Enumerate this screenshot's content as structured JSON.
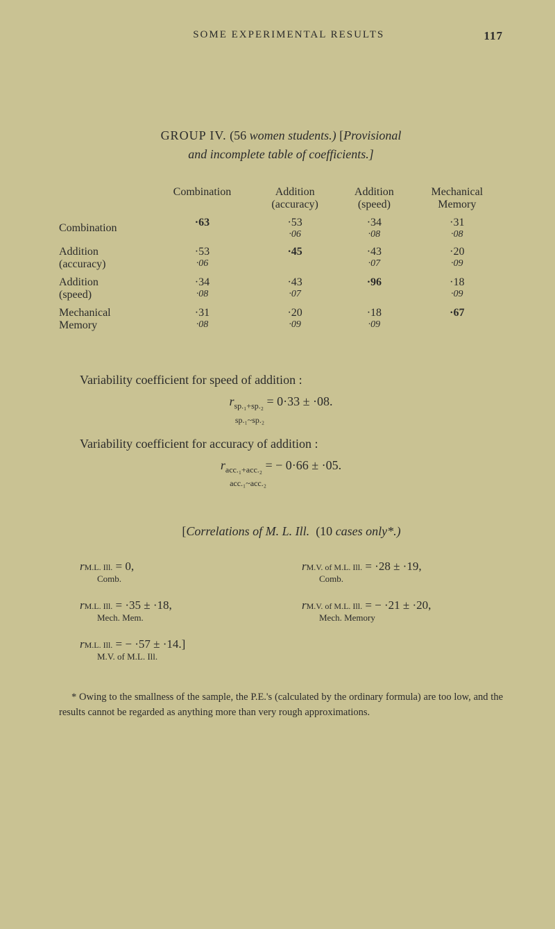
{
  "header": {
    "running_title": "SOME EXPERIMENTAL RESULTS",
    "page_number": "117"
  },
  "title": {
    "group": "GROUP IV.",
    "paren": "(56",
    "women_students": "women students.)",
    "bracket_open": "[",
    "provisional": "Provisional",
    "line2_and": "and incomplete table of coefficients.]"
  },
  "table": {
    "headers": [
      "",
      "Combination",
      "Addition (accuracy)",
      "Addition (speed)",
      "Mechanical Memory"
    ],
    "rows": [
      {
        "label": "Combination",
        "sublabel": "",
        "cells": [
          {
            "main": "·63",
            "sub": "",
            "bold": true
          },
          {
            "main": "·53",
            "sub": "·06"
          },
          {
            "main": "·34",
            "sub": "·08"
          },
          {
            "main": "·31",
            "sub": "·08"
          }
        ]
      },
      {
        "label": "Addition",
        "sublabel": "(accuracy)",
        "cells": [
          {
            "main": "·53",
            "sub": "·06"
          },
          {
            "main": "·45",
            "sub": "",
            "bold": true
          },
          {
            "main": "·43",
            "sub": "·07"
          },
          {
            "main": "·20",
            "sub": "·09"
          }
        ]
      },
      {
        "label": "Addition",
        "sublabel": "(speed)",
        "cells": [
          {
            "main": "·34",
            "sub": "·08"
          },
          {
            "main": "·43",
            "sub": "·07"
          },
          {
            "main": "·96",
            "sub": "",
            "bold": true
          },
          {
            "main": "·18",
            "sub": "·09"
          }
        ]
      },
      {
        "label": "Mechanical",
        "sublabel": "Memory",
        "cells": [
          {
            "main": "·31",
            "sub": "·08"
          },
          {
            "main": "·20",
            "sub": "·09"
          },
          {
            "main": "·18",
            "sub": "·09"
          },
          {
            "main": "·67",
            "sub": "",
            "bold": true
          }
        ]
      }
    ]
  },
  "variability": {
    "speed_text": "Variability coefficient for speed of addition :",
    "speed_formula_main": "= 0·33 ± ·08.",
    "speed_formula_prefix": "r",
    "speed_formula_sub1": "sp.₁+sp.₂",
    "speed_formula_sub2": "sp.₁~sp.₂",
    "acc_text": "Variability coefficient for accuracy of addition :",
    "acc_formula_main": "= − 0·66 ± ·05.",
    "acc_formula_prefix": "r",
    "acc_formula_sub1": "acc.₁+acc.₂",
    "acc_formula_sub2": "acc.₁~acc.₂"
  },
  "correlations": {
    "title_open": "[",
    "title_word": "Correlations of M. L. Ill.",
    "title_rest": "(10 ",
    "title_cases": "cases only*.)",
    "items": [
      {
        "formula": "rM.L. Ill. = 0,",
        "sublabel": "Comb."
      },
      {
        "formula": "rM.V. of M.L. Ill. = ·28 ± ·19,",
        "sublabel": "Comb."
      },
      {
        "formula": "rM.L. Ill. = ·35 ± ·18,",
        "sublabel": "Mech. Mem."
      },
      {
        "formula": "rM.V. of M.L. Ill. = − ·21 ± ·20,",
        "sublabel": "Mech. Memory"
      },
      {
        "formula": "rM.L. Ill. = − ·57 ± ·14.]",
        "sublabel": "M.V. of M.L. Ill."
      }
    ]
  },
  "footnote": "* Owing to the smallness of the sample, the P.E.'s (calculated by the ordinary formula) are too low, and the results cannot be regarded as anything more than very rough approximations."
}
